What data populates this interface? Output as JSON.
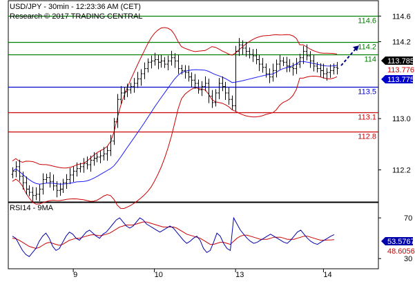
{
  "header": {
    "title": "USD/JPY - 30min - 12:23:36 AM (CET)",
    "subtitle": "Research © 2017 TRADING CENTRAL"
  },
  "rsi_panel": {
    "label": "RSI14 - 9MA"
  },
  "colors": {
    "candle": "#000000",
    "bollinger": "#cc0000",
    "moving_average": "#1a1aff",
    "resistance": "#008000",
    "pivot": "#0000cc",
    "support": "#cc0000",
    "rsi_line": "#0000aa",
    "rsi_ma": "#cc0000",
    "forecast_arrow": "#000080"
  },
  "chart_data": [
    {
      "type": "candlestick",
      "title": "USD/JPY - 30min",
      "y_axis": {
        "ticks": [
          "114.6",
          "114.2",
          "113.0",
          "112.2"
        ],
        "ylim": [
          111.7,
          114.84
        ],
        "side": "right"
      },
      "x_axis": {
        "ticks": [
          "9",
          "10",
          "13",
          "14"
        ]
      },
      "current_price": "113.785",
      "current_price_box_color": "#000000",
      "levels": [
        {
          "label": "114.6",
          "value": 114.6,
          "role": "resistance",
          "color": "#008000"
        },
        {
          "label": "114.2",
          "value": 114.2,
          "role": "resistance",
          "color": "#008000"
        },
        {
          "label": "114",
          "value": 114.0,
          "role": "resistance",
          "color": "#008000"
        },
        {
          "label": "113.5",
          "value": 113.5,
          "role": "pivot",
          "color": "#0000cc",
          "box_label": "113.775",
          "box_color": "#0000cc"
        },
        {
          "label": "113.1",
          "value": 113.1,
          "role": "support",
          "color": "#cc0000"
        },
        {
          "label": "112.8",
          "value": 112.8,
          "role": "support",
          "color": "#cc0000"
        }
      ],
      "extra_box": {
        "label": "113.776",
        "color": "#cc0000"
      },
      "series": [
        {
          "name": "USD/JPY",
          "close": [
            112.18,
            112.25,
            112.1,
            112.0,
            111.9,
            111.85,
            111.8,
            111.82,
            111.9,
            112.05,
            112.08,
            112.02,
            111.95,
            111.88,
            111.9,
            112.0,
            112.05,
            112.12,
            112.18,
            112.22,
            112.25,
            112.3,
            112.28,
            112.35,
            112.38,
            112.4,
            112.42,
            112.45,
            112.5,
            112.65,
            112.95,
            113.3,
            113.4,
            113.42,
            113.45,
            113.5,
            113.55,
            113.62,
            113.7,
            113.78,
            113.88,
            113.9,
            113.92,
            113.88,
            113.9,
            113.85,
            113.9,
            113.95,
            113.9,
            113.78,
            113.75,
            113.72,
            113.65,
            113.6,
            113.55,
            113.45,
            113.5,
            113.55,
            113.35,
            113.25,
            113.4,
            113.55,
            113.5,
            113.4,
            113.3,
            113.2,
            114.05,
            114.15,
            114.1,
            114.05,
            114.0,
            113.98,
            113.92,
            113.85,
            113.8,
            113.7,
            113.65,
            113.75,
            113.85,
            113.9,
            113.88,
            113.82,
            113.8,
            113.78,
            113.85,
            113.95,
            114.05,
            113.98,
            113.9,
            113.82,
            113.78,
            113.75,
            113.7,
            113.72,
            113.75,
            113.8,
            113.785
          ]
        },
        {
          "name": "Bollinger upper"
        },
        {
          "name": "Bollinger lower"
        },
        {
          "name": "Moving average"
        }
      ],
      "forecast": "up"
    },
    {
      "type": "line",
      "title": "RSI14 - 9MA",
      "y_axis": {
        "ticks": [
          "70",
          "30"
        ],
        "ylim": [
          20,
          85
        ]
      },
      "values_labels": {
        "rsi": "53.5767",
        "ma": "48.6056"
      },
      "series": [
        {
          "name": "RSI14",
          "values": [
            52,
            50,
            44,
            38,
            34,
            32,
            36,
            40,
            47,
            52,
            55,
            50,
            42,
            38,
            40,
            46,
            52,
            56,
            54,
            50,
            48,
            52,
            56,
            58,
            55,
            52,
            50,
            54,
            56,
            60,
            64,
            68,
            70,
            66,
            62,
            60,
            62,
            66,
            70,
            68,
            64,
            62,
            60,
            58,
            56,
            58,
            60,
            62,
            60,
            56,
            52,
            48,
            45,
            47,
            50,
            52,
            48,
            40,
            36,
            38,
            46,
            55,
            52,
            45,
            40,
            38,
            70,
            64,
            58,
            54,
            50,
            47,
            45,
            46,
            48,
            50,
            52,
            54,
            52,
            50,
            48,
            46,
            45,
            48,
            52,
            56,
            58,
            54,
            50,
            47,
            45,
            44,
            46,
            48,
            50,
            52,
            53.58
          ]
        },
        {
          "name": "RSI MA",
          "values": [
            50,
            49.5,
            48,
            46,
            44,
            42,
            41,
            40,
            41,
            43,
            45,
            46,
            45,
            44,
            43,
            44,
            46,
            48,
            49,
            50,
            50,
            51,
            52,
            53,
            53.5,
            53,
            52.5,
            53,
            54,
            55,
            57,
            59,
            61,
            62,
            63,
            63,
            63,
            64,
            65,
            66,
            66,
            65,
            64,
            63,
            62,
            61,
            61,
            61,
            61,
            60,
            58,
            56,
            54,
            53,
            52,
            51,
            50,
            48,
            46,
            44,
            44,
            45,
            46,
            46,
            45,
            44,
            47,
            50,
            52,
            53,
            53,
            52,
            51,
            50,
            49,
            49,
            49,
            50,
            51,
            51,
            51,
            50,
            49,
            49,
            49,
            50,
            51,
            52,
            52,
            51,
            50,
            49,
            48,
            48,
            48.3,
            48.4,
            48.61
          ]
        }
      ]
    }
  ]
}
